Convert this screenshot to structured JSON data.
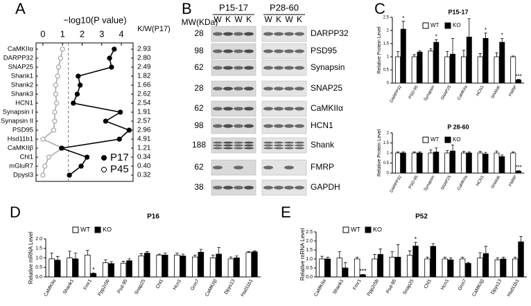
{
  "chart_data": [
    {
      "panel": "A",
      "type": "line",
      "orientation": "horizontal",
      "x_label": "−log10(P value)",
      "categories": [
        "CaMKIIα",
        "DARPP32",
        "SNAP25",
        "Shank1",
        "Shank2",
        "Shank3",
        "HCN1",
        "Synapsin I",
        "Synapsin II",
        "PSD95",
        "Hsd11b1",
        "CaMKIIβ",
        "Chl1",
        "mGluR7",
        "Dpysl3"
      ],
      "series": [
        {
          "name": "P17",
          "color": "#000000",
          "marker": "filled",
          "values": [
            3.64,
            3.4,
            3.5,
            1.8,
            1.9,
            1.75,
            1.55,
            3.95,
            3.2,
            4.4,
            3.9,
            0.95,
            2.25,
            1.95,
            1.35
          ]
        },
        {
          "name": "P45",
          "color": "#aaaaaa",
          "marker": "open",
          "values": [
            1.0,
            0.9,
            0.8,
            0.75,
            0.65,
            0.65,
            0.7,
            0.6,
            0.6,
            0.55,
            0.0,
            1.0,
            0.3,
            0.1,
            0.0
          ]
        }
      ],
      "xlim": [
        -0.35,
        4.6
      ],
      "xticks": [
        0,
        1,
        2,
        3,
        4
      ],
      "reference_line": 1.3,
      "kw_header": "K/W(P17)",
      "kw_ratio": [
        "2.93",
        "2.80",
        "2.49",
        "1.82",
        "1.66",
        "2.62",
        "2.54",
        "1.91",
        "2.57",
        "2.96",
        "4.91",
        "1.21",
        "0.34",
        "0.40",
        "0.32"
      ]
    },
    {
      "panel": "C",
      "type": "bar",
      "title": "P15-17",
      "y_label": "Relative Protein Level",
      "categories": [
        "DARPP32",
        "PSD-95",
        "Synapsin",
        "SNAP25",
        "CaMKIIa",
        "HCN1",
        "SHANK",
        "FMRP"
      ],
      "series": [
        {
          "name": "WT",
          "color": "#ffffff",
          "values": [
            1.0,
            1.0,
            1.22,
            1.0,
            1.0,
            1.0,
            1.0,
            1.0
          ],
          "errors": [
            0.2,
            0.08,
            0.08,
            0.2,
            0.25,
            0.12,
            0.15,
            0.03
          ]
        },
        {
          "name": "KO",
          "color": "#000000",
          "values": [
            2.05,
            1.18,
            1.55,
            1.1,
            1.75,
            1.7,
            1.55,
            0.12
          ],
          "errors": [
            0.3,
            0.05,
            0.1,
            0.6,
            0.7,
            0.2,
            0.15,
            0.02
          ]
        }
      ],
      "ylim": [
        0,
        2.5
      ],
      "yticks": [
        0,
        0.5,
        1,
        1.5,
        2,
        2.5
      ],
      "annotations": [
        {
          "category": "DARPP32",
          "text": "*"
        },
        {
          "category": "Synapsin",
          "text": "*"
        },
        {
          "category": "HCN1",
          "text": "*"
        },
        {
          "category": "SHANK",
          "text": "*"
        },
        {
          "category": "FMRP",
          "text": "***"
        }
      ]
    },
    {
      "type": "bar",
      "title": "P 28-60",
      "y_label": "Relative Protein Level",
      "categories": [
        "DARPP32",
        "PSD-95",
        "Synapsin",
        "SNAP25",
        "CaMKIIa",
        "HCN1",
        "SHANK",
        "FMRP"
      ],
      "series": [
        {
          "name": "WT",
          "color": "#ffffff",
          "values": [
            1.0,
            1.0,
            1.0,
            1.0,
            1.0,
            1.0,
            1.0,
            1.0
          ],
          "errors": [
            0.05,
            0.05,
            0.15,
            0.12,
            0.08,
            0.08,
            0.1,
            0.05
          ]
        },
        {
          "name": "KO",
          "color": "#000000",
          "values": [
            1.0,
            1.0,
            1.05,
            1.1,
            1.0,
            0.95,
            0.82,
            0.1
          ],
          "errors": [
            0.05,
            0.05,
            0.2,
            0.3,
            0.05,
            0.08,
            0.08,
            0.02
          ]
        }
      ],
      "ylim": [
        0,
        2
      ],
      "yticks": [
        0,
        0.5,
        1,
        1.5,
        2
      ],
      "annotations": [
        {
          "category": "FMRP",
          "text": "***"
        }
      ]
    },
    {
      "panel": "D",
      "type": "bar",
      "title": "P16",
      "y_label": "Relative mRNA Level",
      "categories": [
        "CaMKIIα",
        "Shank1",
        "Fmr1",
        "Ppp2r5b",
        "Psd-95",
        "Snap25",
        "Chl1",
        "Hcn1",
        "Grm7",
        "CaMKIIβ",
        "Dpys13",
        "Hsd11b1"
      ],
      "series": [
        {
          "name": "WT",
          "color": "#ffffff",
          "values": [
            0.95,
            1.0,
            1.15,
            0.75,
            0.72,
            1.1,
            1.15,
            1.15,
            1.05,
            1.0,
            0.95,
            1.28
          ],
          "errors": [
            0.3,
            0.35,
            0.25,
            0.15,
            0.1,
            0.12,
            0.05,
            0.1,
            0.1,
            0.15,
            0.1,
            0.05
          ]
        },
        {
          "name": "KO",
          "color": "#000000",
          "values": [
            0.88,
            0.95,
            0.18,
            0.7,
            0.85,
            1.25,
            1.15,
            1.1,
            1.3,
            1.2,
            1.0,
            1.32
          ],
          "errors": [
            0.2,
            0.3,
            0.03,
            0.1,
            0.1,
            0.08,
            0.1,
            0.1,
            0.15,
            0.35,
            0.1,
            0.05
          ]
        }
      ],
      "ylim": [
        0,
        2
      ],
      "yticks": [
        {
          "value": 0,
          "label": "0.0"
        },
        {
          "value": 0.5,
          "label": "0.5"
        },
        {
          "value": 1,
          "label": "1.0"
        },
        {
          "value": 1.5,
          "label": "1.5"
        },
        {
          "value": 2,
          "label": "2.0"
        }
      ],
      "annotations": [
        {
          "category": "Fmr1",
          "text": "*"
        }
      ]
    },
    {
      "panel": "E",
      "type": "bar",
      "title": "P52",
      "y_label": "Relative mRNA Level",
      "categories": [
        "CaMKIIα",
        "Shank1",
        "Fmr1",
        "Ppp2r5b",
        "Psd-95",
        "Snap25",
        "Chl1",
        "Hcn1",
        "Grm7",
        "CaMKIIβ",
        "Dpys13",
        "Hsd11b1"
      ],
      "series": [
        {
          "name": "WT",
          "color": "#ffffff",
          "values": [
            1.0,
            1.05,
            1.0,
            1.0,
            1.1,
            1.2,
            1.0,
            1.0,
            1.0,
            1.05,
            0.95,
            1.0
          ],
          "errors": [
            0.15,
            0.35,
            0.1,
            0.25,
            0.3,
            0.25,
            0.1,
            0.1,
            0.1,
            0.3,
            0.1,
            0.1
          ]
        },
        {
          "name": "KO",
          "color": "#000000",
          "values": [
            1.0,
            0.5,
            0.12,
            1.25,
            1.1,
            1.72,
            1.7,
            0.95,
            0.75,
            1.3,
            1.0,
            1.95
          ],
          "errors": [
            0.1,
            0.3,
            0.02,
            0.3,
            0.7,
            0.2,
            0.15,
            0.1,
            0.05,
            0.4,
            0.1,
            0.3
          ]
        }
      ],
      "ylim": [
        0,
        2.5
      ],
      "yticks": [
        {
          "value": 0,
          "label": "0.0"
        },
        {
          "value": 0.5,
          "label": "0.5"
        },
        {
          "value": 1,
          "label": "1.0"
        },
        {
          "value": 1.5,
          "label": "1.5"
        },
        {
          "value": 2,
          "label": "2.0"
        },
        {
          "value": 2.5,
          "label": "2.5"
        }
      ],
      "annotations": [
        {
          "category": "Fmr1",
          "text": "***"
        },
        {
          "category": "Snap25",
          "text": "*"
        }
      ]
    }
  ],
  "blot": {
    "panel": "B",
    "mw_label": "MW(KDa)",
    "groups": [
      {
        "label": "P15-17",
        "lanes": [
          "W",
          "K",
          "W",
          "K"
        ]
      },
      {
        "label": "P28-60",
        "lanes": [
          "W",
          "K",
          "W",
          "K"
        ]
      }
    ],
    "rows": [
      {
        "mw": 28,
        "protein": "DARPP32"
      },
      {
        "mw": 98,
        "protein": "PSD95"
      },
      {
        "mw": 62,
        "protein": "Synapsin"
      },
      {
        "mw": 28,
        "protein": "SNAP25"
      },
      {
        "mw": 62,
        "protein": "CaMKIIα"
      },
      {
        "mw": 98,
        "protein": "HCN1"
      },
      {
        "mw": 188,
        "protein": "Shank"
      },
      {
        "mw": 62,
        "protein": "FMRP"
      },
      {
        "mw": 38,
        "protein": "GAPDH"
      }
    ]
  }
}
